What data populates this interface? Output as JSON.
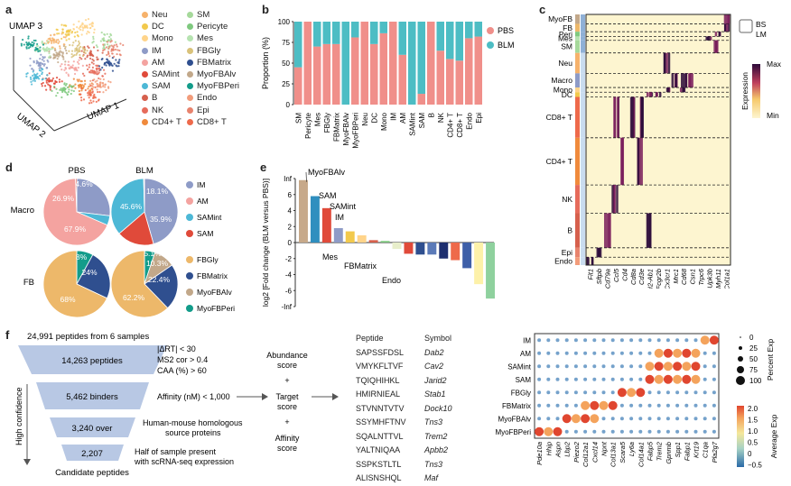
{
  "letters": {
    "a": "a",
    "b": "b",
    "c": "c",
    "d": "d",
    "e": "e",
    "f": "f"
  },
  "panel_a": {
    "axis1": "UMAP 3",
    "axis2": "UMAP 2",
    "axis3": "UMAP 1",
    "legend": [
      {
        "label": "Neu",
        "color": "#f6b26b"
      },
      {
        "label": "DC",
        "color": "#f2c94c"
      },
      {
        "label": "Mono",
        "color": "#ffd48a"
      },
      {
        "label": "IM",
        "color": "#8e9bc7"
      },
      {
        "label": "AM",
        "color": "#f4a3a0"
      },
      {
        "label": "SAMint",
        "color": "#e04a3a"
      },
      {
        "label": "SAM",
        "color": "#4db8d6"
      },
      {
        "label": "B",
        "color": "#d6604d"
      },
      {
        "label": "NK",
        "color": "#e66b5b"
      },
      {
        "label": "CD4+ T",
        "color": "#f08a3c"
      },
      {
        "label": "SM",
        "color": "#a6d99b"
      },
      {
        "label": "Pericyte",
        "color": "#7fc97f"
      },
      {
        "label": "Mes",
        "color": "#b6e3b0"
      },
      {
        "label": "FBGly",
        "color": "#d9c27a"
      },
      {
        "label": "FBMatrix",
        "color": "#2f4f8f"
      },
      {
        "label": "MyoFBAlv",
        "color": "#c2a88a"
      },
      {
        "label": "MyoFBPeri",
        "color": "#139c8a"
      },
      {
        "label": "Endo",
        "color": "#f29c7b"
      },
      {
        "label": "Epi",
        "color": "#e8836d"
      },
      {
        "label": "CD8+ T",
        "color": "#ee6a4b"
      }
    ]
  },
  "panel_b": {
    "chart_data": {
      "type": "bar",
      "ylabel": "Proportion (%)",
      "ylim": [
        0,
        100
      ],
      "yticks": [
        "0",
        "25",
        "50",
        "75",
        "100"
      ],
      "categories": [
        "SM",
        "Pericyte",
        "Mes",
        "FBGly",
        "FBMatrix",
        "MyoFBAlv",
        "MyoFBPeri",
        "Neu",
        "DC",
        "Mono",
        "IM",
        "AM",
        "SAMint",
        "SAM",
        "B",
        "NK",
        "CD4+ T",
        "CD8+ T",
        "Endo",
        "Epi"
      ],
      "series": [
        {
          "name": "PBS",
          "color": "#f08f8a",
          "values": [
            45,
            100,
            70,
            73,
            73,
            0,
            81,
            100,
            73,
            86,
            100,
            60,
            0,
            13,
            100,
            65,
            55,
            53,
            80,
            82
          ]
        },
        {
          "name": "BLM",
          "color": "#4dbdc4",
          "values": [
            55,
            0,
            30,
            27,
            27,
            100,
            19,
            0,
            27,
            14,
            0,
            40,
            100,
            87,
            0,
            35,
            45,
            47,
            20,
            18
          ]
        }
      ],
      "legend": [
        "PBS",
        "BLM"
      ]
    }
  },
  "panel_c": {
    "rows": [
      "MyoFB",
      "FB",
      "Peri",
      "Mes",
      "SM",
      "Neu",
      "Macro",
      "Mono",
      "DC",
      "CD8+ T",
      "CD4+ T",
      "NK",
      "B",
      "Epi",
      "Endo"
    ],
    "genes": [
      "Fit1",
      "Sftpb",
      "Cd79a",
      "Ccl5",
      "Cd4",
      "Cd8a",
      "Cd3e",
      "H2-Ab1",
      "Fcgr2b",
      "Cx3cr1",
      "Mrc1",
      "Cd68",
      "Csn1",
      "Trpc6",
      "Upk3b",
      "Myh11",
      "Col1a1"
    ],
    "legend_title": "Expression",
    "legend_max": "Max",
    "legend_min": "Min",
    "bs": "BS",
    "lm": "LM"
  },
  "panel_d": {
    "col1": "PBS",
    "col2": "BLM",
    "row1": "Macro",
    "row2": "FB",
    "pies": [
      {
        "name": "pbs-macro",
        "slices": [
          {
            "label": "IM",
            "value": 26.9,
            "color": "#8e9bc7"
          },
          {
            "label": "SAMint",
            "value": 4.6,
            "color": "#4db8d6"
          },
          {
            "label": "AM",
            "value": 67.9,
            "color": "#f4a3a0"
          },
          {
            "label": "SAM",
            "value": 0.6,
            "color": "#e04a3a"
          }
        ],
        "texts": [
          "26.9%",
          "4.6%",
          "67.9%"
        ]
      },
      {
        "name": "blm-macro",
        "slices": [
          {
            "label": "IM",
            "value": 45.6,
            "color": "#8e9bc7"
          },
          {
            "label": "SAM",
            "value": 18.1,
            "color": "#e04a3a"
          },
          {
            "label": "SAMint",
            "value": 35.9,
            "color": "#4db8d6"
          },
          {
            "label": "AM",
            "value": 0.4,
            "color": "#f4a3a0"
          }
        ],
        "texts": [
          "45.6%",
          "18.1%",
          "35.9%"
        ]
      },
      {
        "name": "pbs-fb",
        "slices": [
          {
            "label": "MyoFBPeri",
            "value": 8,
            "color": "#139c8a"
          },
          {
            "label": "FBMatrix",
            "value": 24,
            "color": "#2f4f8f"
          },
          {
            "label": "FBGly",
            "value": 68,
            "color": "#edb86a"
          }
        ],
        "texts": [
          "8%",
          "24%",
          "68%"
        ]
      },
      {
        "name": "blm-fb",
        "slices": [
          {
            "label": "MyoFBPeri",
            "value": 5.1,
            "color": "#139c8a"
          },
          {
            "label": "MyoFBAlv",
            "value": 10.3,
            "color": "#c2a88a"
          },
          {
            "label": "FBMatrix",
            "value": 22.4,
            "color": "#2f4f8f"
          },
          {
            "label": "FBGly",
            "value": 62.2,
            "color": "#edb86a"
          }
        ],
        "texts": [
          "5.1%",
          "10.3%",
          "22.4%",
          "62.2%"
        ]
      }
    ],
    "legend": [
      {
        "label": "IM",
        "color": "#8e9bc7"
      },
      {
        "label": "AM",
        "color": "#f4a3a0"
      },
      {
        "label": "SAMint",
        "color": "#4db8d6"
      },
      {
        "label": "SAM",
        "color": "#e04a3a"
      },
      {
        "label": "FBGly",
        "color": "#edb86a"
      },
      {
        "label": "FBMatrix",
        "color": "#2f4f8f"
      },
      {
        "label": "MyoFBAlv",
        "color": "#c2a88a"
      },
      {
        "label": "MyoFBPeri",
        "color": "#139c8a"
      }
    ]
  },
  "panel_e": {
    "chart_data": {
      "type": "bar",
      "ylabel": "log2 [Fold change (BLM versus PBS)]",
      "yticks": [
        "Inf",
        "6",
        "4",
        "2",
        "0",
        "-2",
        "-4",
        "-6",
        "-Inf"
      ],
      "values": [
        7.8,
        5.8,
        4.3,
        1.8,
        1.4,
        0.9,
        0.3,
        0.2,
        -0.8,
        -1.4,
        -1.5,
        -1.5,
        -2.0,
        -2.2,
        -3.2,
        -5.2,
        -7.0
      ],
      "colors": [
        "#c7a98a",
        "#2f8fbf",
        "#e04a3a",
        "#8e9bc7",
        "#f2c94c",
        "#ffd48a",
        "#d6604d",
        "#7fc97f",
        "#e8eecb",
        "#e04a3a",
        "#2f4f8f",
        "#5b7ab8",
        "#1d2f6f",
        "#ee6a4b",
        "#3e5fa8",
        "#fdf1a9",
        "#8fd19e"
      ],
      "annotations": [
        "MyoFBAlv",
        "SAM",
        "SAMint",
        "IM",
        "Mes",
        "FBMatrix",
        "Endo"
      ]
    }
  },
  "panel_f": {
    "top": "24,991 peptides from 6 samples",
    "funnel": [
      "14,263 peptides",
      "5,462 binders",
      "3,240 over",
      "2,207"
    ],
    "criteria": [
      "|ΔRT| < 30",
      "MS2 cor > 0.4",
      "CAA (%) > 60",
      "Affinity (nM) < 1,000",
      "Human-mouse homologous",
      "source proteins",
      "Half of sample present",
      "with scRNA-seq expression"
    ],
    "high_conf": "High confidence",
    "bottom": "Candidate peptides",
    "scores": [
      "Abundance",
      "score",
      "+",
      "Target",
      "score",
      "+",
      "Affinity",
      "score"
    ],
    "pep_header": "Peptide",
    "sym_header": "Symbol",
    "peptides": [
      "SAPSSFDSL",
      "VMYKFLTVF",
      "TQIQHIHKL",
      "HMIRNIEAL",
      "STVNNTVTV",
      "SSYMHFTNV",
      "SQALNTTVL",
      "YALTNIQAA",
      "SSPKSTLTL",
      "ALISNSHQL"
    ],
    "symbols": [
      "Dab2",
      "Cav2",
      "Jarid2",
      "Stab1",
      "Dock10",
      "Tns3",
      "Trem2",
      "Apbb2",
      "Tns3",
      "Maf"
    ]
  },
  "panel_dot": {
    "rows": [
      "IM",
      "AM",
      "SAMint",
      "SAM",
      "FBGly",
      "FBMatrix",
      "MyoFBAlv",
      "MyoFBPeri"
    ],
    "genes": [
      "Pde10a",
      "Hhip",
      "Aspn",
      "Lbp2",
      "Piezo2",
      "Col12a1",
      "Cxcl14",
      "Npnt",
      "Col13a1",
      "Scara5",
      "Ly6a",
      "Col14a1",
      "Fabp5",
      "Trem2",
      "Gpnmb",
      "Spp1",
      "Fabp1",
      "Krt19",
      "C1qa",
      "Pla2g7"
    ],
    "size_title": "Percent Exp",
    "size_labels": [
      "0",
      "25",
      "50",
      "75",
      "100"
    ],
    "color_title": "Average Exp",
    "color_labels": [
      "2.0",
      "1.5",
      "1.0",
      "0.5",
      "0",
      "−0.5"
    ]
  }
}
